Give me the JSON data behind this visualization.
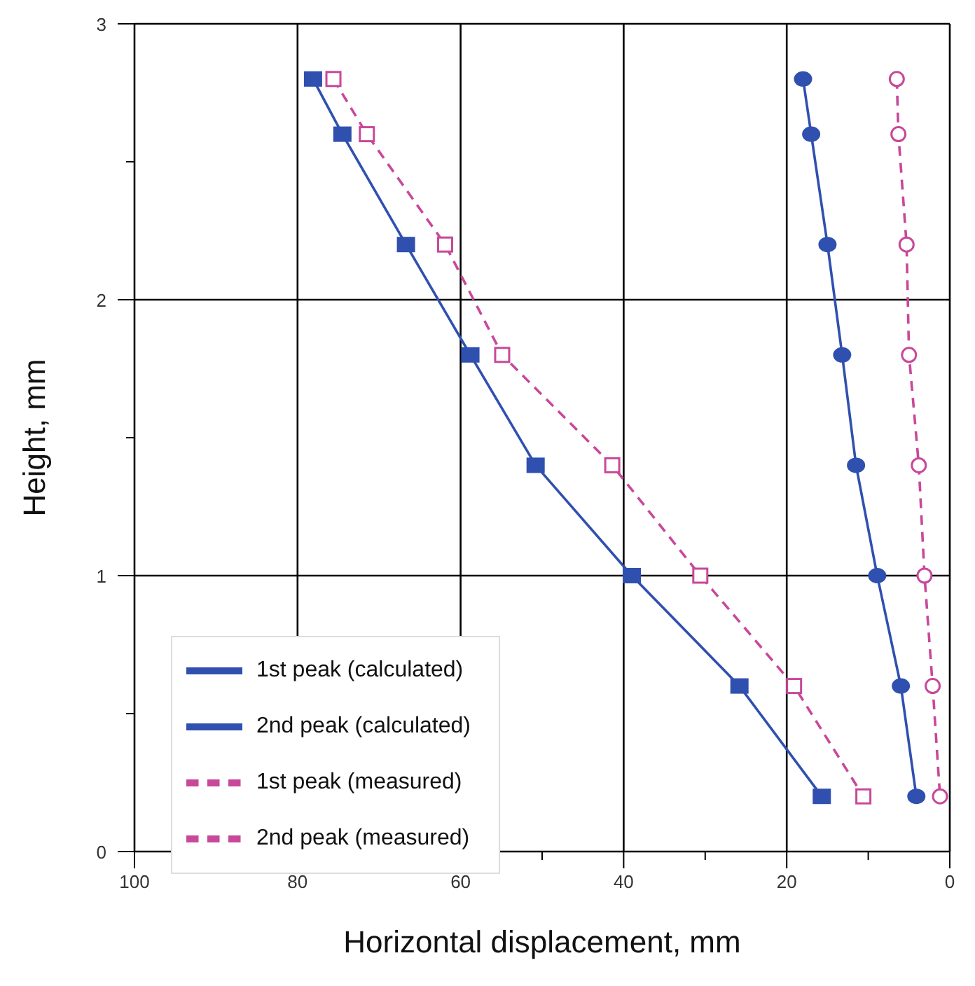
{
  "chart_data": {
    "type": "line",
    "xlabel": "Horizontal displacement, mm",
    "ylabel": "Height, mm",
    "xlim": [
      100,
      0
    ],
    "xticks": [
      100,
      {
        "value": 90,
        "label": null
      },
      80,
      {
        "value": 70,
        "label": null
      },
      60,
      {
        "value": 50,
        "label": null
      },
      40,
      {
        "value": 30,
        "label": null
      },
      20,
      {
        "value": 10,
        "label": null
      },
      0
    ],
    "ylim": [
      0,
      3
    ],
    "yticks": [
      0,
      {
        "value": 0.5,
        "label": null
      },
      1,
      {
        "value": 1.5,
        "label": null
      },
      2,
      {
        "value": 2.5,
        "label": null
      },
      3
    ],
    "grid": true,
    "legend": "bottom left",
    "series": [
      {
        "name": "1st peak (calculated)",
        "color": "#3050b0",
        "marker": "circle",
        "line_style": "solid",
        "x": [
          18,
          17,
          15,
          13.2,
          11.5,
          8.9,
          6,
          4.1
        ],
        "values": [
          2.8,
          2.6,
          2.2,
          1.8,
          1.4,
          1,
          0.6,
          0.2
        ]
      },
      {
        "name": "2nd peak (calculated)",
        "color": "#3050b0",
        "marker": "square",
        "line_style": "solid",
        "x": [
          78.1,
          74.5,
          66.7,
          58.8,
          50.8,
          39,
          25.8,
          15.7
        ],
        "values": [
          2.8,
          2.6,
          2.2,
          1.8,
          1.4,
          1,
          0.6,
          0.2
        ]
      },
      {
        "name": "1st peak (measured)",
        "color": "#c8489a",
        "marker": "circle",
        "line_style": "dashed",
        "x": [
          6.5,
          6.3,
          5.3,
          5,
          3.8,
          3.1,
          2.1,
          1.2
        ],
        "values": [
          2.8,
          2.6,
          2.2,
          1.8,
          1.4,
          1,
          0.6,
          0.2
        ]
      },
      {
        "name": "2nd peak (measured)",
        "color": "#c8489a",
        "marker": "square",
        "line_style": "dashed",
        "x": [
          75.6,
          71.5,
          61.9,
          54.9,
          41.4,
          30.6,
          19.1,
          10.6
        ],
        "values": [
          2.8,
          2.6,
          2.2,
          1.8,
          1.4,
          1,
          0.6,
          0.2
        ]
      }
    ]
  }
}
